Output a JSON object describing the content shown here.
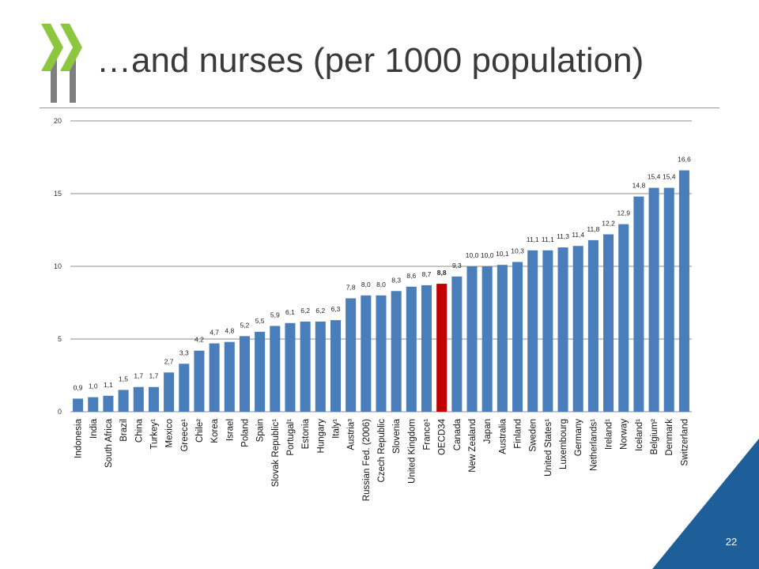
{
  "slide": {
    "title": "…and nurses (per 1000 population)",
    "page_number": "22"
  },
  "colors": {
    "bar": "#4A7EBB",
    "highlight_bar": "#C00000",
    "logo_green": "#8DC63F",
    "logo_gray": "#7F7F7F",
    "corner_blue": "#1F5F99"
  },
  "icons": {
    "logo": "oecd-chevron-logo"
  },
  "chart_data": {
    "type": "bar",
    "ylim": [
      0,
      20
    ],
    "yticks": [
      0,
      5,
      10,
      15,
      20
    ],
    "grid": true,
    "categories": [
      "Indonesia",
      "India",
      "South Africa",
      "Brazil",
      "China",
      "Turkey¹",
      "Mexico",
      "Greece¹",
      "Chile²",
      "Korea",
      "Israel",
      "Poland",
      "Spain",
      "Slovak Republic¹",
      "Portugal¹",
      "Estonia",
      "Hungary",
      "Italy¹",
      "Austria³",
      "Russian Fed. (2006)",
      "Czech Republic",
      "Slovenia",
      "United Kingdom",
      "France¹",
      "OECD34",
      "Canada",
      "New Zealand",
      "Japan",
      "Australia",
      "Finland",
      "Sweden",
      "United States¹",
      "Luxembourg",
      "Germany",
      "Netherlands¹",
      "Ireland¹",
      "Norway",
      "Iceland¹",
      "Belgium²",
      "Denmark",
      "Switzerland"
    ],
    "values": [
      0.9,
      1.0,
      1.1,
      1.5,
      1.7,
      1.7,
      2.7,
      3.3,
      4.2,
      4.7,
      4.8,
      5.2,
      5.5,
      5.9,
      6.1,
      6.2,
      6.2,
      6.3,
      7.8,
      8.0,
      8.0,
      8.3,
      8.6,
      8.7,
      8.8,
      9.3,
      10.0,
      10.0,
      10.1,
      10.3,
      11.1,
      11.1,
      11.3,
      11.4,
      11.8,
      12.2,
      12.9,
      14.8,
      15.4,
      15.4,
      16.6
    ],
    "labels": [
      "0,9",
      "1,0",
      "1,1",
      "1,5",
      "1,7",
      "1,7",
      "2,7",
      "3,3",
      "4,2",
      "4,7",
      "4,8",
      "5,2",
      "5,5",
      "5,9",
      "6,1",
      "6,2",
      "6,2",
      "6,3",
      "7,8",
      "8,0",
      "8,0",
      "8,3",
      "8,6",
      "8,7",
      "8,8",
      "9,3",
      "10,0",
      "10,0",
      "10,1",
      "10,3",
      "11,1",
      "11,1",
      "11,3",
      "11,4",
      "11,8",
      "12,2",
      "12,9",
      "14,8",
      "15,4",
      "15,4",
      "16,6"
    ],
    "highlight": "OECD34"
  }
}
